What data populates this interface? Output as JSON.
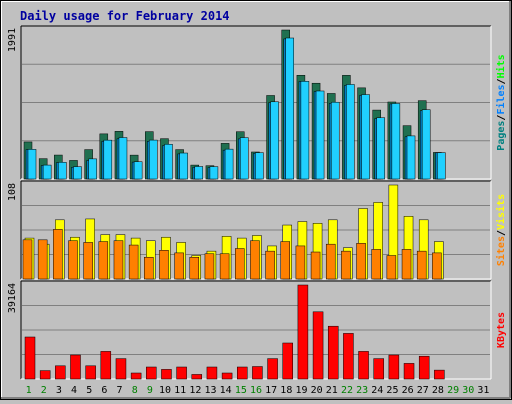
{
  "title": "Daily usage for February 2014",
  "colors": {
    "pages": "#008080",
    "files": "#0080ff",
    "hits": "#00ff00",
    "visits": "#ffff00",
    "sites": "#ff8000",
    "kbytes": "#ff0000",
    "plot_bg": "#c0c0c0",
    "title": "#0000a0",
    "weekend": "#008000",
    "weekday": "#000000"
  },
  "chart_data": [
    {
      "type": "bar",
      "name": "hits-files-pages",
      "ymax_label": "1991",
      "ylim": [
        0,
        1991
      ],
      "categories": [
        "1",
        "2",
        "3",
        "4",
        "5",
        "6",
        "7",
        "8",
        "9",
        "10",
        "11",
        "12",
        "13",
        "14",
        "15",
        "16",
        "17",
        "18",
        "19",
        "20",
        "21",
        "22",
        "23",
        "24",
        "25",
        "26",
        "27",
        "28",
        "29",
        "30",
        "31"
      ],
      "weekend_days": [
        1,
        2,
        8,
        9,
        15,
        16,
        22,
        23,
        29,
        30
      ],
      "series": [
        {
          "name": "Hits",
          "values": [
            495,
            272,
            320,
            248,
            393,
            603,
            637,
            319,
            633,
            539,
            393,
            186,
            178,
            476,
            632,
            361,
            1116,
            1991,
            1386,
            1280,
            1143,
            1385,
            1218,
            921,
            1029,
            713,
            1047,
            355,
            0,
            0,
            0
          ]
        },
        {
          "name": "Files",
          "values": [
            393,
            180,
            218,
            157,
            247,
            504,
            537,
            226,
            504,
            446,
            335,
            156,
            154,
            385,
            536,
            342,
            1020,
            1872,
            1303,
            1169,
            1011,
            1250,
            1116,
            807,
            1003,
            564,
            912,
            350,
            0,
            0,
            0
          ]
        },
        {
          "name": "Pages",
          "values": [
            396,
            186,
            223,
            165,
            269,
            519,
            554,
            231,
            520,
            464,
            347,
            167,
            165,
            399,
            553,
            352,
            1032,
            1884,
            1305,
            1176,
            1026,
            1263,
            1128,
            819,
            1009,
            576,
            926,
            352,
            0,
            0,
            0
          ]
        }
      ],
      "legend": [
        {
          "label": "Pages",
          "key": "pages"
        },
        {
          "label": "Files",
          "key": "files"
        },
        {
          "label": "Hits",
          "key": "hits"
        }
      ]
    },
    {
      "type": "bar",
      "name": "visits-sites",
      "ymax_label": "108",
      "ylim": [
        0,
        108
      ],
      "series": [
        {
          "name": "Visits",
          "values": [
            47,
            40,
            68,
            48,
            69,
            51,
            51,
            47,
            44,
            48,
            42,
            27,
            32,
            49,
            47,
            50,
            38,
            62,
            66,
            64,
            68,
            36,
            81,
            88,
            108,
            72,
            68,
            43,
            0,
            0,
            0
          ]
        },
        {
          "name": "Sites",
          "values": [
            45,
            45,
            57,
            44,
            42,
            43,
            44,
            39,
            25,
            33,
            30,
            25,
            29,
            29,
            35,
            44,
            32,
            43,
            38,
            31,
            40,
            32,
            41,
            34,
            27,
            34,
            32,
            30,
            0,
            0,
            0
          ]
        }
      ],
      "legend": [
        {
          "label": "Sites",
          "key": "sites"
        },
        {
          "label": "Visits",
          "key": "visits"
        }
      ]
    },
    {
      "type": "bar",
      "name": "kbytes",
      "ymax_label": "39164",
      "ylim": [
        0,
        39164
      ],
      "series": [
        {
          "name": "KBytes",
          "values": [
            17500,
            3500,
            5500,
            10000,
            5500,
            11500,
            8500,
            2500,
            5000,
            4000,
            5000,
            1900,
            5000,
            2500,
            5000,
            5200,
            8500,
            15000,
            39164,
            28000,
            22000,
            19000,
            11500,
            8500,
            10000,
            6500,
            9500,
            3700,
            0,
            0,
            0
          ]
        }
      ],
      "legend": [
        {
          "label": "KBytes",
          "key": "kbytes"
        }
      ]
    }
  ]
}
